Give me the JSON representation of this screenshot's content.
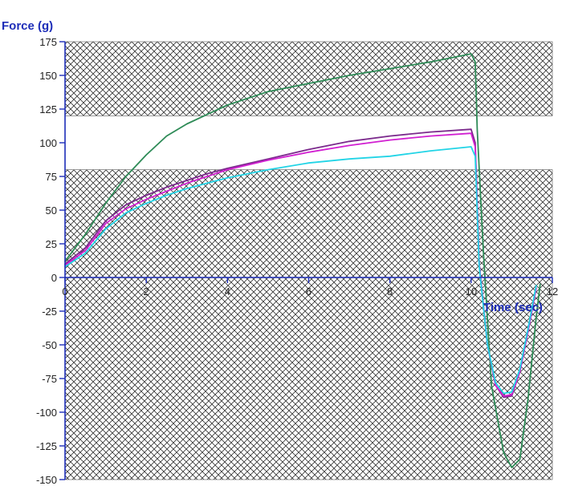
{
  "chart_data": {
    "type": "line",
    "xlabel": "Time (sec)",
    "ylabel": "Force (g)",
    "xlim": [
      0,
      12
    ],
    "ylim": [
      -150,
      175
    ],
    "x_ticks": [
      0,
      2,
      4,
      6,
      8,
      10,
      12
    ],
    "y_ticks": [
      175,
      150,
      125,
      100,
      75,
      50,
      25,
      0,
      -25,
      -50,
      -75,
      -100,
      -125,
      -150
    ],
    "grid": false,
    "legend": "none",
    "hatched_bands": [
      {
        "y_from": 120,
        "y_to": 175
      },
      {
        "y_from": -150,
        "y_to": 80
      }
    ],
    "colors": {
      "axis": "#1d2db8",
      "hatch": "#333333",
      "series_green": "#2e8b57",
      "series_purple": "#7b2a8c",
      "series_magenta": "#d11fd1",
      "series_cyan": "#22d4e6"
    },
    "series": [
      {
        "color": "#2e8b57",
        "x": [
          0,
          0.5,
          1,
          1.5,
          2,
          2.5,
          3,
          3.5,
          4,
          5,
          6,
          7,
          8,
          9,
          10,
          10.1,
          10.15,
          10.3,
          10.5,
          10.8,
          11,
          11.2,
          11.4,
          11.6,
          11.7
        ],
        "y": [
          12,
          32,
          55,
          75,
          91,
          105,
          114,
          121,
          128,
          138,
          144,
          150,
          155,
          160,
          166,
          160,
          110,
          20,
          -80,
          -130,
          -141,
          -135,
          -90,
          -30,
          -5
        ]
      },
      {
        "color": "#7b2a8c",
        "x": [
          0,
          0.5,
          1,
          1.5,
          2,
          2.5,
          3,
          3.5,
          4,
          5,
          6,
          7,
          8,
          9,
          10,
          10.1,
          10.2,
          10.4,
          10.6,
          10.8,
          11,
          11.2,
          11.4,
          11.6
        ],
        "y": [
          10,
          22,
          42,
          54,
          61,
          67,
          72,
          77,
          81,
          88,
          95,
          101,
          105,
          108,
          110,
          100,
          10,
          -50,
          -80,
          -89,
          -88,
          -70,
          -40,
          -8
        ]
      },
      {
        "color": "#d11fd1",
        "x": [
          0,
          0.5,
          1,
          1.5,
          2,
          2.5,
          3,
          3.5,
          4,
          5,
          6,
          7,
          8,
          9,
          10,
          10.1,
          10.2,
          10.4,
          10.6,
          10.8,
          11,
          11.2,
          11.4,
          11.6
        ],
        "y": [
          9,
          20,
          40,
          51,
          58,
          64,
          70,
          75,
          80,
          87,
          93,
          98,
          102,
          105,
          107,
          97,
          10,
          -50,
          -80,
          -88,
          -87,
          -70,
          -40,
          -8
        ]
      },
      {
        "color": "#22d4e6",
        "x": [
          0,
          0.5,
          1,
          1.5,
          2,
          2.5,
          3,
          3.5,
          4,
          5,
          6,
          7,
          8,
          9,
          10,
          10.1,
          10.2,
          10.4,
          10.6,
          10.8,
          11,
          11.2,
          11.4,
          11.6
        ],
        "y": [
          8,
          18,
          36,
          48,
          55,
          61,
          66,
          70,
          74,
          80,
          85,
          88,
          90,
          94,
          97,
          90,
          8,
          -50,
          -78,
          -86,
          -85,
          -68,
          -38,
          -6
        ]
      }
    ]
  }
}
